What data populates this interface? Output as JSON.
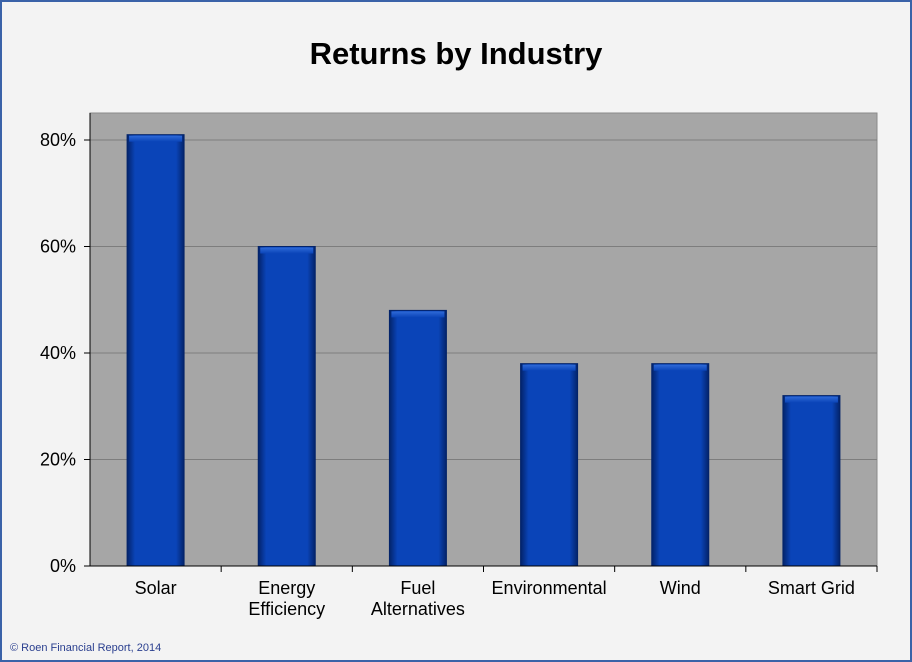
{
  "chart_data": {
    "type": "bar",
    "title": "Returns by Industry",
    "categories": [
      "Solar",
      "Energy Efficiency",
      "Fuel Alternatives",
      "Environmental",
      "Wind",
      "Smart Grid"
    ],
    "category_lines": [
      [
        "Solar"
      ],
      [
        "Energy",
        "Efficiency"
      ],
      [
        "Fuel",
        "Alternatives"
      ],
      [
        "Environmental"
      ],
      [
        "Wind"
      ],
      [
        "Smart Grid"
      ]
    ],
    "values": [
      81,
      60,
      48,
      38,
      38,
      32
    ],
    "value_unit": "%",
    "ylim": [
      0,
      80
    ],
    "yticks": [
      "0%",
      "20%",
      "40%",
      "60%",
      "80%"
    ],
    "grid": true,
    "legend": "none",
    "colors": {
      "bar": "#0a44b8",
      "bar_dark": "#03236a",
      "plot_bg": "#a6a6a6",
      "grid": "#7d7d7d",
      "frame": "#3a62a8"
    }
  },
  "footer": "© Roen Financial Report, 2014"
}
